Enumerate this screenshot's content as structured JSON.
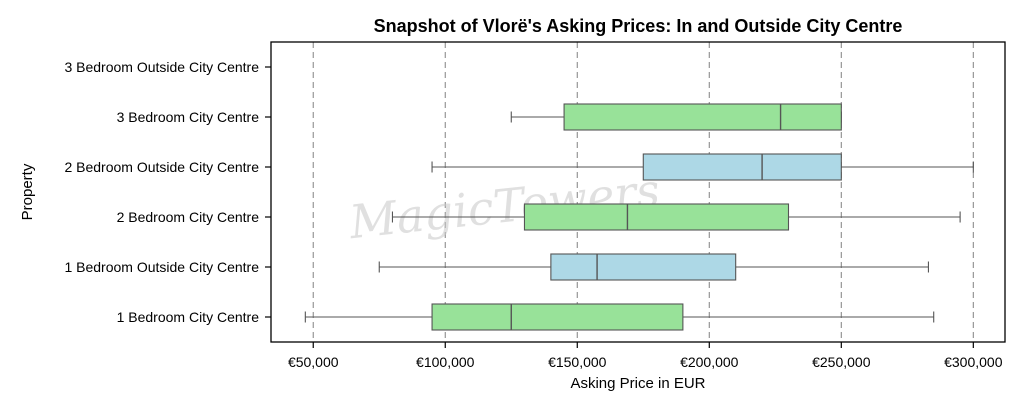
{
  "chart_data": {
    "type": "boxplot",
    "orientation": "horizontal",
    "title": "Snapshot of Vlorë's Asking Prices: In and Outside City Centre",
    "xlabel": "Asking Price in EUR",
    "ylabel": "Property",
    "xlim": [
      34000,
      312000
    ],
    "xticks": [
      50000,
      100000,
      150000,
      200000,
      250000,
      300000
    ],
    "xtick_labels": [
      "€50,000",
      "€100,000",
      "€150,000",
      "€200,000",
      "€250,000",
      "€300,000"
    ],
    "grid": "vertical dashed",
    "categories": [
      "3 Bedroom Outside City Centre",
      "3 Bedroom City Centre",
      "2 Bedroom Outside City Centre",
      "2 Bedroom City Centre",
      "1 Bedroom Outside City Centre",
      "1 Bedroom City Centre"
    ],
    "boxes": [
      null,
      {
        "whislo": 125000,
        "q1": 145000,
        "med": 227000,
        "q3": 250000,
        "whishi": 250000,
        "color": "#98e299"
      },
      {
        "whislo": 95000,
        "q1": 175000,
        "med": 220000,
        "q3": 250000,
        "whishi": 300000,
        "color": "#add8e6"
      },
      {
        "whislo": 80000,
        "q1": 130000,
        "med": 169000,
        "q3": 230000,
        "whishi": 295000,
        "color": "#98e299"
      },
      {
        "whislo": 75000,
        "q1": 140000,
        "med": 157500,
        "q3": 210000,
        "whishi": 283000,
        "color": "#add8e6"
      },
      {
        "whislo": 47000,
        "q1": 95000,
        "med": 125000,
        "q3": 190000,
        "whishi": 285000,
        "color": "#98e299"
      }
    ]
  },
  "watermark": "MagicTowers"
}
